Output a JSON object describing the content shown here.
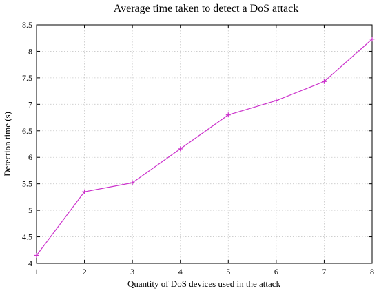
{
  "chart_data": {
    "type": "line",
    "title": "Average time taken to detect a DoS attack",
    "xlabel": "Quantity of DoS devices used in the attack",
    "ylabel": "Detection time (s)",
    "xlim": [
      1,
      8
    ],
    "ylim": [
      4,
      8.5
    ],
    "xticks": [
      1,
      2,
      3,
      4,
      5,
      6,
      7,
      8
    ],
    "yticks": [
      4,
      4.5,
      5,
      5.5,
      6,
      6.5,
      7,
      7.5,
      8,
      8.5
    ],
    "grid": true,
    "series": [
      {
        "color": "#cc33cc",
        "marker": "plus",
        "x": [
          1,
          2,
          3,
          4,
          5,
          6,
          7,
          8
        ],
        "y": [
          4.15,
          5.35,
          5.52,
          6.16,
          6.8,
          7.07,
          7.43,
          8.23
        ]
      }
    ]
  }
}
